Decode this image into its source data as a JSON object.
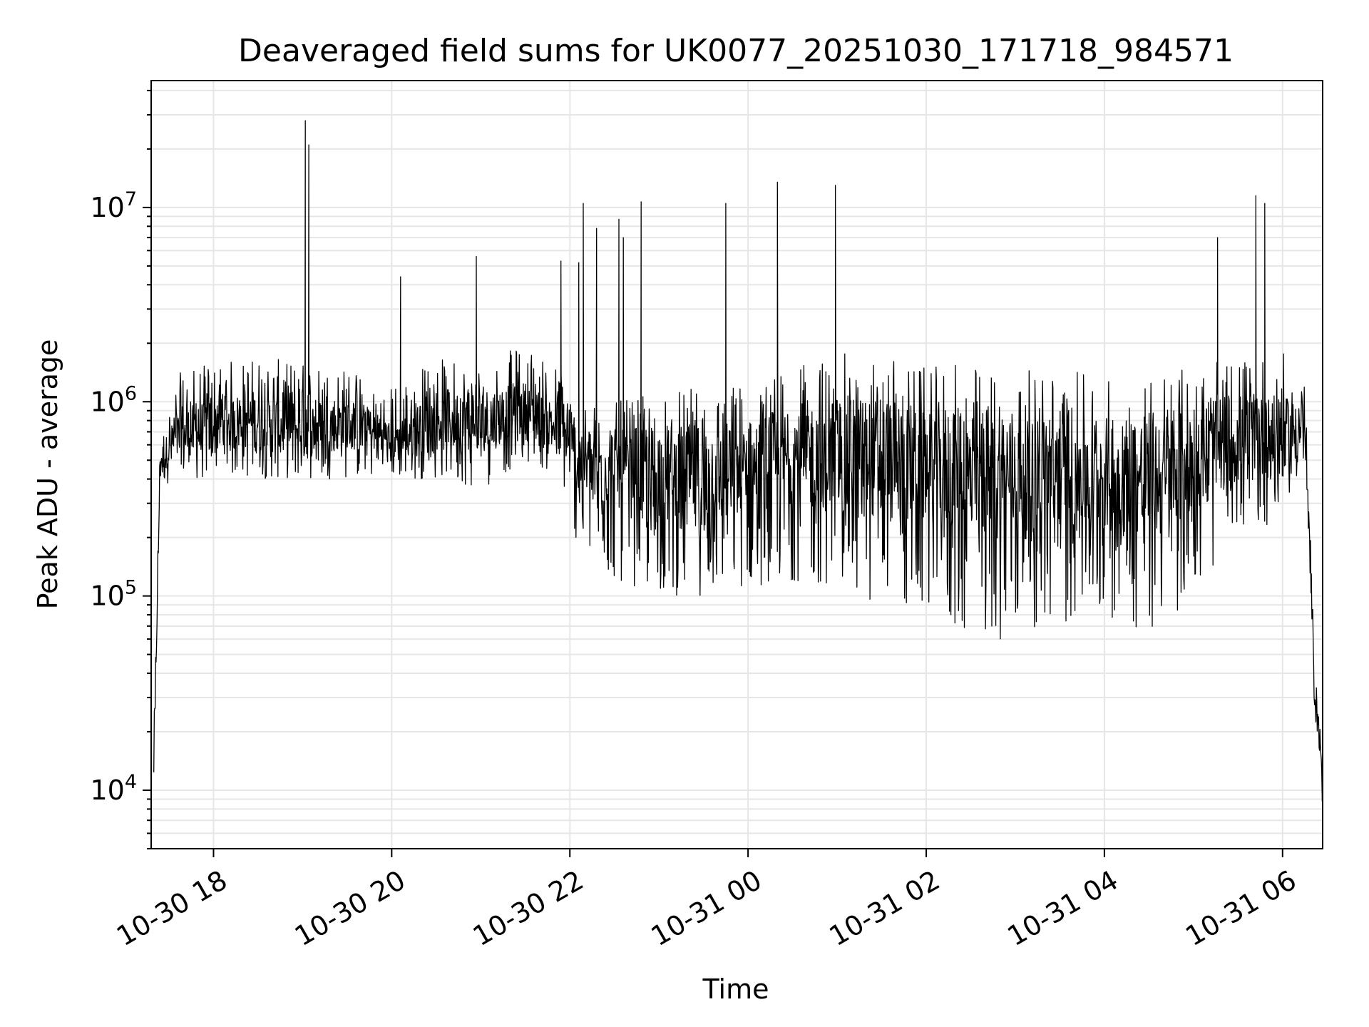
{
  "chart_data": {
    "type": "line",
    "title": "Deaveraged field sums for UK0077_20251030_171718_984571",
    "xlabel": "Time",
    "ylabel": "Peak ADU - average",
    "yscale": "log",
    "xlim_hours": [
      17.3,
      30.45
    ],
    "ylim": [
      5000,
      45000000
    ],
    "grid": true,
    "line_color": "#000000",
    "grid_color": "#e6e6e6",
    "x_ticks": [
      {
        "label": "10-30 18",
        "hours": 18
      },
      {
        "label": "10-30 20",
        "hours": 20
      },
      {
        "label": "10-30 22",
        "hours": 22
      },
      {
        "label": "10-31 00",
        "hours": 24
      },
      {
        "label": "10-31 02",
        "hours": 26
      },
      {
        "label": "10-31 04",
        "hours": 28
      },
      {
        "label": "10-31 06",
        "hours": 30
      }
    ],
    "y_ticks": [
      {
        "base": "10",
        "exp": "4",
        "value": 10000
      },
      {
        "base": "10",
        "exp": "5",
        "value": 100000
      },
      {
        "base": "10",
        "exp": "6",
        "value": 1000000
      },
      {
        "base": "10",
        "exp": "7",
        "value": 10000000
      }
    ],
    "series": [
      {
        "name": "Peak ADU - average",
        "envelope": [
          {
            "t": 17.33,
            "center": 10000,
            "lo": 10000,
            "hi": 20000
          },
          {
            "t": 17.4,
            "center": 500000,
            "lo": 380000,
            "hi": 620000
          },
          {
            "t": 17.6,
            "center": 650000,
            "lo": 380000,
            "hi": 1400000
          },
          {
            "t": 18.0,
            "center": 750000,
            "lo": 400000,
            "hi": 1600000
          },
          {
            "t": 18.5,
            "center": 800000,
            "lo": 400000,
            "hi": 1700000
          },
          {
            "t": 19.0,
            "center": 700000,
            "lo": 400000,
            "hi": 1600000
          },
          {
            "t": 19.5,
            "center": 800000,
            "lo": 400000,
            "hi": 1500000
          },
          {
            "t": 20.0,
            "center": 600000,
            "lo": 400000,
            "hi": 1200000
          },
          {
            "t": 20.5,
            "center": 800000,
            "lo": 400000,
            "hi": 1700000
          },
          {
            "t": 21.0,
            "center": 800000,
            "lo": 350000,
            "hi": 1600000
          },
          {
            "t": 21.5,
            "center": 900000,
            "lo": 500000,
            "hi": 2000000
          },
          {
            "t": 21.9,
            "center": 700000,
            "lo": 400000,
            "hi": 1500000
          },
          {
            "t": 22.1,
            "center": 500000,
            "lo": 170000,
            "hi": 1000000
          },
          {
            "t": 22.5,
            "center": 450000,
            "lo": 120000,
            "hi": 1000000
          },
          {
            "t": 23.0,
            "center": 420000,
            "lo": 100000,
            "hi": 1100000
          },
          {
            "t": 23.5,
            "center": 420000,
            "lo": 100000,
            "hi": 1200000
          },
          {
            "t": 24.0,
            "center": 430000,
            "lo": 110000,
            "hi": 1300000
          },
          {
            "t": 24.5,
            "center": 520000,
            "lo": 120000,
            "hi": 1500000
          },
          {
            "t": 25.0,
            "center": 550000,
            "lo": 110000,
            "hi": 1800000
          },
          {
            "t": 25.5,
            "center": 500000,
            "lo": 90000,
            "hi": 1700000
          },
          {
            "t": 26.0,
            "center": 480000,
            "lo": 80000,
            "hi": 1500000
          },
          {
            "t": 26.5,
            "center": 450000,
            "lo": 60000,
            "hi": 1600000
          },
          {
            "t": 27.0,
            "center": 420000,
            "lo": 60000,
            "hi": 1500000
          },
          {
            "t": 27.5,
            "center": 480000,
            "lo": 70000,
            "hi": 1500000
          },
          {
            "t": 28.0,
            "center": 420000,
            "lo": 80000,
            "hi": 1300000
          },
          {
            "t": 28.5,
            "center": 400000,
            "lo": 60000,
            "hi": 1500000
          },
          {
            "t": 29.0,
            "center": 550000,
            "lo": 100000,
            "hi": 1500000
          },
          {
            "t": 29.5,
            "center": 650000,
            "lo": 200000,
            "hi": 1700000
          },
          {
            "t": 30.0,
            "center": 650000,
            "lo": 250000,
            "hi": 1800000
          },
          {
            "t": 30.25,
            "center": 750000,
            "lo": 450000,
            "hi": 1300000
          },
          {
            "t": 30.3,
            "center": 200000,
            "lo": 120000,
            "hi": 300000
          },
          {
            "t": 30.36,
            "center": 30000,
            "lo": 25000,
            "hi": 45000
          },
          {
            "t": 30.42,
            "center": 20000,
            "lo": 15000,
            "hi": 22000
          },
          {
            "t": 30.45,
            "center": 8000,
            "lo": 6000,
            "hi": 10000
          }
        ],
        "spikes": [
          {
            "t": 19.03,
            "value": 28000000
          },
          {
            "t": 19.07,
            "value": 21000000
          },
          {
            "t": 22.15,
            "value": 10500000
          },
          {
            "t": 22.1,
            "value": 5200000
          },
          {
            "t": 22.3,
            "value": 7800000
          },
          {
            "t": 22.55,
            "value": 8700000
          },
          {
            "t": 22.6,
            "value": 7000000
          },
          {
            "t": 22.8,
            "value": 10700000
          },
          {
            "t": 23.75,
            "value": 10500000
          },
          {
            "t": 24.33,
            "value": 13500000
          },
          {
            "t": 24.98,
            "value": 13000000
          },
          {
            "t": 29.27,
            "value": 7000000
          },
          {
            "t": 29.7,
            "value": 11500000
          },
          {
            "t": 29.8,
            "value": 10500000
          },
          {
            "t": 21.9,
            "value": 5300000
          },
          {
            "t": 20.1,
            "value": 4400000
          },
          {
            "t": 20.95,
            "value": 5600000
          }
        ]
      }
    ]
  }
}
